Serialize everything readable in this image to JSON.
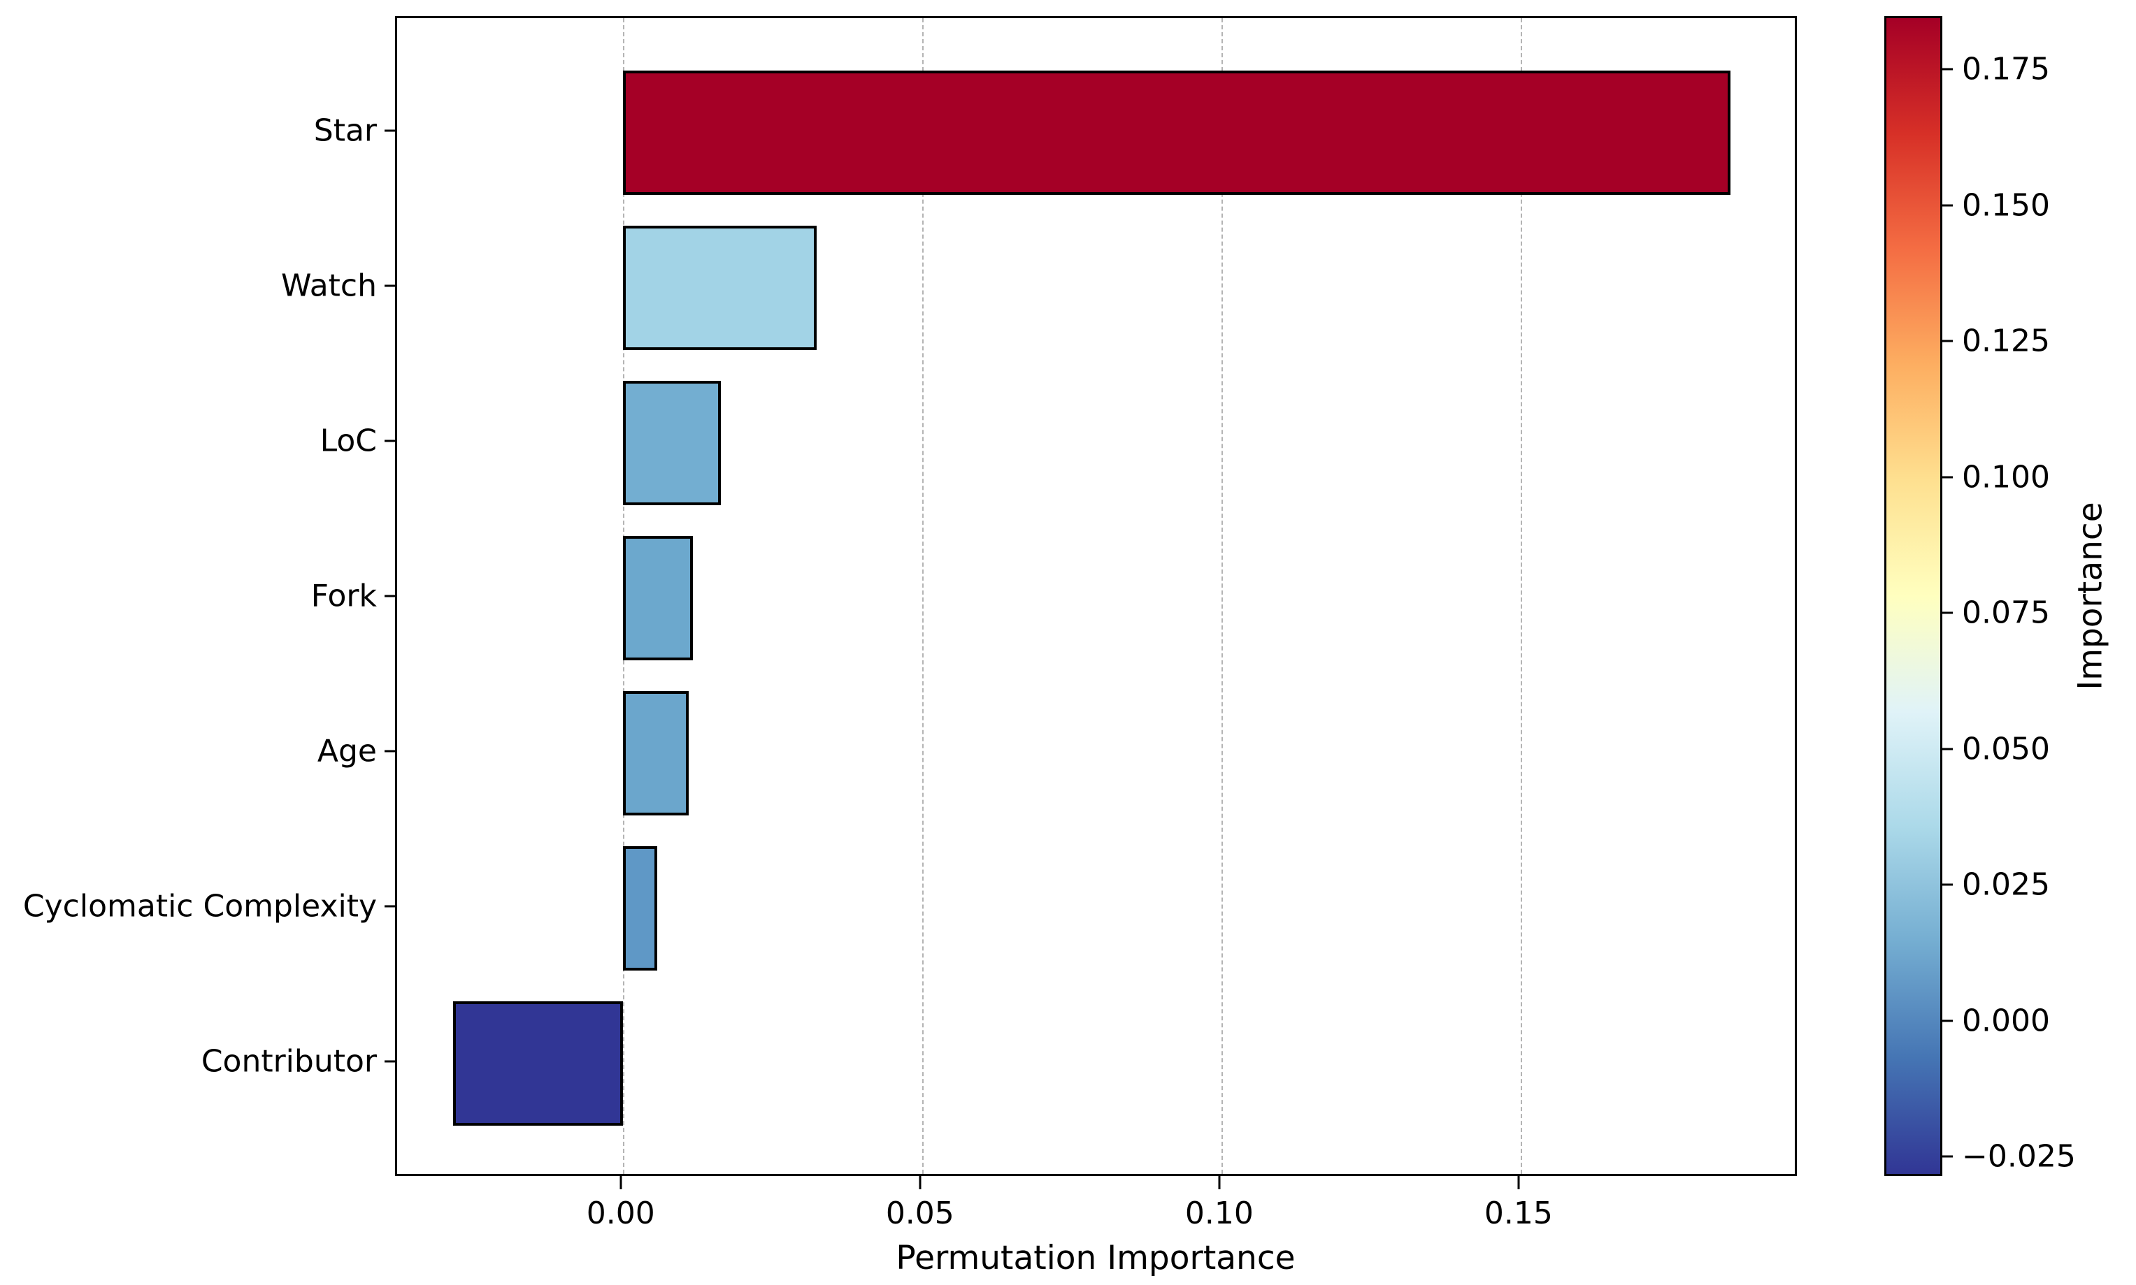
{
  "chart_data": {
    "type": "bar",
    "orientation": "horizontal",
    "title": "",
    "categories": [
      "Star",
      "Watch",
      "LoC",
      "Fork",
      "Age",
      "Cyclomatic Complexity",
      "Contributor"
    ],
    "values": [
      0.185,
      0.0324,
      0.0164,
      0.0117,
      0.011,
      0.0058,
      -0.0284
    ],
    "bar_colors": [
      "#a50026",
      "#a2d3e6",
      "#73aed1",
      "#6ca8cd",
      "#6ba6cc",
      "#5f98c6",
      "#313695"
    ],
    "xlabel": "Permutation Importance",
    "ylabel": "",
    "xlim": [
      -0.0377,
      0.1965
    ],
    "x_ticks": [
      {
        "value": 0.0,
        "label": "0.00"
      },
      {
        "value": 0.05,
        "label": "0.05"
      },
      {
        "value": 0.1,
        "label": "0.10"
      },
      {
        "value": 0.15,
        "label": "0.15"
      }
    ],
    "grid": "vertical-dashed",
    "legend": "none",
    "colorbar": {
      "label": "Importance",
      "vmin": -0.0286,
      "vmax": 0.1848,
      "ticks": [
        {
          "value": 0.175,
          "label": "0.175"
        },
        {
          "value": 0.15,
          "label": "0.150"
        },
        {
          "value": 0.125,
          "label": "0.125"
        },
        {
          "value": 0.1,
          "label": "0.100"
        },
        {
          "value": 0.075,
          "label": "0.075"
        },
        {
          "value": 0.05,
          "label": "0.050"
        },
        {
          "value": 0.025,
          "label": "0.025"
        },
        {
          "value": 0.0,
          "label": "0.000"
        },
        {
          "value": -0.025,
          "label": "−0.025"
        }
      ],
      "gradient_top_to_bottom": [
        "#a50026",
        "#d73027",
        "#f46d43",
        "#fdae61",
        "#fee090",
        "#ffffbf",
        "#e0f3f8",
        "#abd9e9",
        "#74add1",
        "#4575b4",
        "#313695"
      ]
    }
  }
}
